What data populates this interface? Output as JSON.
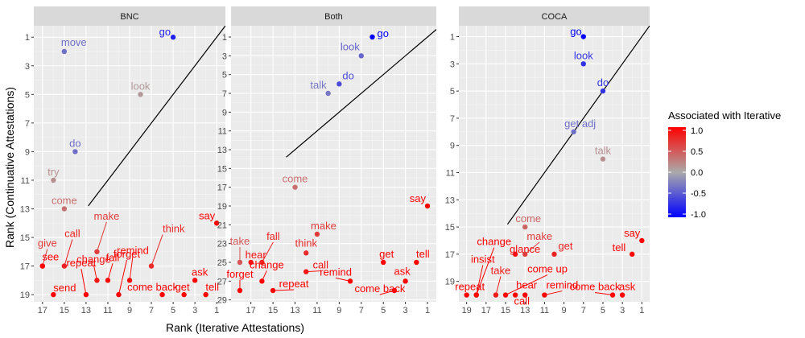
{
  "chart_data": {
    "type": "scatter",
    "x_title": "Rank (Iterative Attestations)",
    "y_title": "Rank (Continuative Attestations)",
    "reference_line": "y = x",
    "color_scale": {
      "title": "Associated with Iterative",
      "low_color": "#0000ff",
      "mid_color": "#aaaaaa",
      "high_color": "#ff0000",
      "breaks": [
        1.0,
        0.5,
        0.0,
        -0.5,
        -1.0
      ],
      "break_labels": [
        "1.0",
        "0.5",
        "0.0",
        "-0.5",
        "-1.0"
      ]
    },
    "panels": [
      {
        "title": "BNC",
        "xlim": [
          17.8,
          0.2
        ],
        "x_ticks": [
          17,
          15,
          13,
          11,
          9,
          7,
          5,
          3,
          1
        ],
        "ylim": [
          19.5,
          0.2
        ],
        "y_ticks": [
          1,
          3,
          5,
          7,
          9,
          11,
          13,
          15,
          17,
          19
        ],
        "points": [
          {
            "word": "go",
            "x": 5,
            "y": 1,
            "v": -0.8
          },
          {
            "word": "move",
            "x": 15,
            "y": 2,
            "v": -0.35
          },
          {
            "word": "look",
            "x": 8,
            "y": 5,
            "v": 0.1
          },
          {
            "word": "do",
            "x": 14,
            "y": 9,
            "v": -0.35
          },
          {
            "word": "try",
            "x": 16,
            "y": 11,
            "v": 0.15
          },
          {
            "word": "come",
            "x": 15,
            "y": 13,
            "v": 0.35
          },
          {
            "word": "say",
            "x": 1,
            "y": 14,
            "v": 1.0
          },
          {
            "word": "give",
            "x": 17,
            "y": 17,
            "v": 0.65
          },
          {
            "word": "see",
            "x": 17,
            "y": 17,
            "v": 1.0
          },
          {
            "word": "call",
            "x": 15,
            "y": 17,
            "v": 0.8
          },
          {
            "word": "make",
            "x": 12,
            "y": 16,
            "v": 0.65
          },
          {
            "word": "change",
            "x": 12,
            "y": 18,
            "v": 0.9
          },
          {
            "word": "repeat",
            "x": 13,
            "y": 19,
            "v": 1.0
          },
          {
            "word": "forget",
            "x": 10,
            "y": 19,
            "v": 1.0
          },
          {
            "word": "think",
            "x": 7,
            "y": 17,
            "v": 0.75
          },
          {
            "word": "fall",
            "x": 11,
            "y": 18,
            "v": 1.0
          },
          {
            "word": "remind",
            "x": 9,
            "y": 18,
            "v": 0.95
          },
          {
            "word": "send",
            "x": 16,
            "y": 19,
            "v": 1.0
          },
          {
            "word": "ask",
            "x": 3,
            "y": 18,
            "v": 1.0
          },
          {
            "word": "come back",
            "x": 6,
            "y": 19,
            "v": 1.0
          },
          {
            "word": "get",
            "x": 4,
            "y": 19,
            "v": 1.0
          },
          {
            "word": "tell",
            "x": 2,
            "y": 19,
            "v": 1.0
          }
        ]
      },
      {
        "title": "Both",
        "xlim": [
          18.8,
          0.2
        ],
        "x_ticks": [
          17,
          15,
          13,
          11,
          9,
          7,
          5,
          3,
          1
        ],
        "ylim": [
          29.2,
          -0.2
        ],
        "y_ticks": [
          1,
          3,
          5,
          7,
          9,
          11,
          13,
          15,
          17,
          19,
          21,
          23,
          25,
          27,
          29
        ],
        "points": [
          {
            "word": "go",
            "x": 6,
            "y": 1,
            "v": -1.0
          },
          {
            "word": "look",
            "x": 7,
            "y": 3,
            "v": -0.4
          },
          {
            "word": "do",
            "x": 9,
            "y": 6,
            "v": -0.55
          },
          {
            "word": "talk",
            "x": 10,
            "y": 7,
            "v": -0.3
          },
          {
            "word": "come",
            "x": 13,
            "y": 17,
            "v": 0.35
          },
          {
            "word": "say",
            "x": 1,
            "y": 19,
            "v": 1.0
          },
          {
            "word": "take",
            "x": 18,
            "y": 25,
            "v": 0.5
          },
          {
            "word": "fall",
            "x": 16,
            "y": 25,
            "v": 0.8
          },
          {
            "word": "make",
            "x": 11,
            "y": 22,
            "v": 0.65
          },
          {
            "word": "think",
            "x": 12,
            "y": 24,
            "v": 0.75
          },
          {
            "word": "hear",
            "x": 17,
            "y": 25,
            "v": 0.9
          },
          {
            "word": "change",
            "x": 16,
            "y": 27,
            "v": 1.0
          },
          {
            "word": "call",
            "x": 12,
            "y": 26,
            "v": 0.9
          },
          {
            "word": "forget",
            "x": 18,
            "y": 28,
            "v": 1.0
          },
          {
            "word": "get",
            "x": 5,
            "y": 25,
            "v": 1.0
          },
          {
            "word": "tell",
            "x": 2,
            "y": 25,
            "v": 1.0
          },
          {
            "word": "remind",
            "x": 8,
            "y": 27,
            "v": 1.0
          },
          {
            "word": "repeat",
            "x": 15,
            "y": 28,
            "v": 1.0
          },
          {
            "word": "ask",
            "x": 3,
            "y": 27,
            "v": 1.0
          },
          {
            "word": "come back",
            "x": 4,
            "y": 28,
            "v": 1.0
          }
        ]
      },
      {
        "title": "COCA",
        "xlim": [
          19.8,
          0.2
        ],
        "x_ticks": [
          19,
          17,
          15,
          13,
          11,
          9,
          7,
          5,
          3,
          1
        ],
        "ylim": [
          20.5,
          0.2
        ],
        "y_ticks": [
          1,
          3,
          5,
          7,
          9,
          11,
          13,
          15,
          17,
          19
        ],
        "points": [
          {
            "word": "go",
            "x": 7,
            "y": 1,
            "v": -1.0
          },
          {
            "word": "look",
            "x": 7,
            "y": 3,
            "v": -0.7
          },
          {
            "word": "do",
            "x": 5,
            "y": 5,
            "v": -0.7
          },
          {
            "word": "get adj",
            "x": 8,
            "y": 8,
            "v": -0.35
          },
          {
            "word": "talk",
            "x": 5,
            "y": 10,
            "v": 0.15
          },
          {
            "word": "come",
            "x": 13,
            "y": 15,
            "v": 0.4
          },
          {
            "word": "say",
            "x": 1,
            "y": 16,
            "v": 1.0
          },
          {
            "word": "tell",
            "x": 2,
            "y": 17,
            "v": 1.0
          },
          {
            "word": "change",
            "x": 18,
            "y": 20,
            "v": 1.0
          },
          {
            "word": "insist",
            "x": 18,
            "y": 20,
            "v": 1.0
          },
          {
            "word": "glance",
            "x": 14,
            "y": 17,
            "v": 0.95
          },
          {
            "word": "make",
            "x": 13,
            "y": 17,
            "v": 0.65
          },
          {
            "word": "get",
            "x": 10,
            "y": 17,
            "v": 0.8
          },
          {
            "word": "take",
            "x": 16,
            "y": 20,
            "v": 0.85
          },
          {
            "word": "come up",
            "x": 15,
            "y": 20,
            "v": 1.0
          },
          {
            "word": "repeat",
            "x": 19,
            "y": 20,
            "v": 1.0
          },
          {
            "word": "hear",
            "x": 14,
            "y": 20,
            "v": 1.0
          },
          {
            "word": "call",
            "x": 13,
            "y": 20,
            "v": 1.0
          },
          {
            "word": "remind",
            "x": 11,
            "y": 20,
            "v": 1.0
          },
          {
            "word": "come back",
            "x": 4,
            "y": 20,
            "v": 1.0
          },
          {
            "word": "ask",
            "x": 3,
            "y": 20,
            "v": 1.0
          }
        ]
      }
    ]
  }
}
